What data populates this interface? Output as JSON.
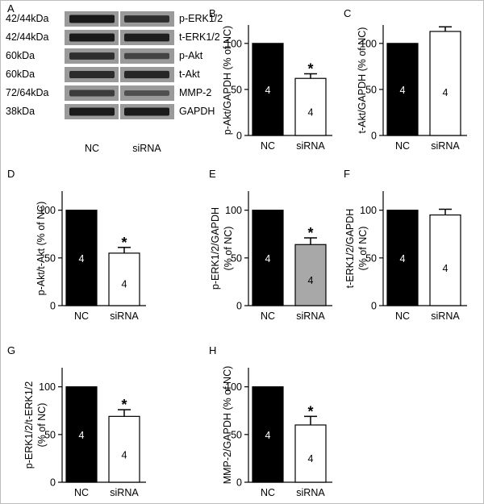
{
  "panel_a": {
    "letter": "A",
    "blots": [
      {
        "weight": "42/44kDa",
        "protein": "p-ERK1/2",
        "nc_intensity": 1.0,
        "sirna_intensity": 0.75
      },
      {
        "weight": "42/44kDa",
        "protein": "t-ERK1/2",
        "nc_intensity": 1.0,
        "sirna_intensity": 0.95
      },
      {
        "weight": "60kDa",
        "protein": "p-Akt",
        "nc_intensity": 0.75,
        "sirna_intensity": 0.5
      },
      {
        "weight": "60kDa",
        "protein": "t-Akt",
        "nc_intensity": 0.8,
        "sirna_intensity": 0.85
      },
      {
        "weight": "72/64kDa",
        "protein": "MMP-2",
        "nc_intensity": 0.6,
        "sirna_intensity": 0.35
      },
      {
        "weight": "38kDa",
        "protein": "GAPDH",
        "nc_intensity": 1.0,
        "sirna_intensity": 1.0
      }
    ],
    "lanes": [
      "NC",
      "siRNA"
    ]
  },
  "colors": {
    "nc": "#000000",
    "sirna_default": "#ffffff",
    "sirna_gray": "#a8a8a8",
    "blot_bg": "#9a9a9a",
    "band": "#1a1a1a"
  },
  "chart_data": [
    {
      "panel": "B",
      "type": "bar",
      "categories": [
        "NC",
        "siRNA"
      ],
      "values": [
        100,
        62
      ],
      "errors": [
        0,
        5
      ],
      "n_labels": [
        "4",
        "4"
      ],
      "significance": [
        "",
        "*"
      ],
      "ylabel": [
        "p-Akt/GAPDH (% of NC)"
      ],
      "yticks": [
        0,
        50,
        100
      ],
      "ylim": [
        0,
        120
      ],
      "sirna_fill": "white"
    },
    {
      "panel": "C",
      "type": "bar",
      "categories": [
        "NC",
        "siRNA"
      ],
      "values": [
        100,
        113
      ],
      "errors": [
        0,
        5
      ],
      "n_labels": [
        "4",
        "4"
      ],
      "significance": [
        "",
        ""
      ],
      "ylabel": [
        "t-Akt/GAPDH (% of NC)"
      ],
      "yticks": [
        0,
        50,
        100
      ],
      "ylim": [
        0,
        120
      ],
      "sirna_fill": "white"
    },
    {
      "panel": "D",
      "type": "bar",
      "categories": [
        "NC",
        "siRNA"
      ],
      "values": [
        100,
        55
      ],
      "errors": [
        0,
        6
      ],
      "n_labels": [
        "4",
        "4"
      ],
      "significance": [
        "",
        "*"
      ],
      "ylabel": [
        "p-Akt/t-Akt (% of NC)"
      ],
      "yticks": [
        0,
        50,
        100
      ],
      "ylim": [
        0,
        120
      ],
      "sirna_fill": "white"
    },
    {
      "panel": "E",
      "type": "bar",
      "categories": [
        "NC",
        "siRNA"
      ],
      "values": [
        100,
        64
      ],
      "errors": [
        0,
        7
      ],
      "n_labels": [
        "4",
        "4"
      ],
      "significance": [
        "",
        "*"
      ],
      "ylabel": [
        "p-ERK1/2/GAPDH",
        "(% of NC)"
      ],
      "yticks": [
        0,
        50,
        100
      ],
      "ylim": [
        0,
        120
      ],
      "sirna_fill": "gray"
    },
    {
      "panel": "F",
      "type": "bar",
      "categories": [
        "NC",
        "siRNA"
      ],
      "values": [
        100,
        95
      ],
      "errors": [
        0,
        6
      ],
      "n_labels": [
        "4",
        "4"
      ],
      "significance": [
        "",
        ""
      ],
      "ylabel": [
        "t-ERK1/2/GAPDH",
        "(% of NC)"
      ],
      "yticks": [
        0,
        50,
        100
      ],
      "ylim": [
        0,
        120
      ],
      "sirna_fill": "white"
    },
    {
      "panel": "G",
      "type": "bar",
      "categories": [
        "NC",
        "siRNA"
      ],
      "values": [
        100,
        69
      ],
      "errors": [
        0,
        7
      ],
      "n_labels": [
        "4",
        "4"
      ],
      "significance": [
        "",
        "*"
      ],
      "ylabel": [
        "p-ERK1/2/t-ERK1/2",
        "(% of NC)"
      ],
      "yticks": [
        0,
        50,
        100
      ],
      "ylim": [
        0,
        120
      ],
      "sirna_fill": "white"
    },
    {
      "panel": "H",
      "type": "bar",
      "categories": [
        "NC",
        "siRNA"
      ],
      "values": [
        100,
        60
      ],
      "errors": [
        0,
        9
      ],
      "n_labels": [
        "4",
        "4"
      ],
      "significance": [
        "",
        "*"
      ],
      "ylabel": [
        "MMP-2/GAPDH (% of NC)"
      ],
      "yticks": [
        0,
        50,
        100
      ],
      "ylim": [
        0,
        120
      ],
      "sirna_fill": "white"
    }
  ]
}
